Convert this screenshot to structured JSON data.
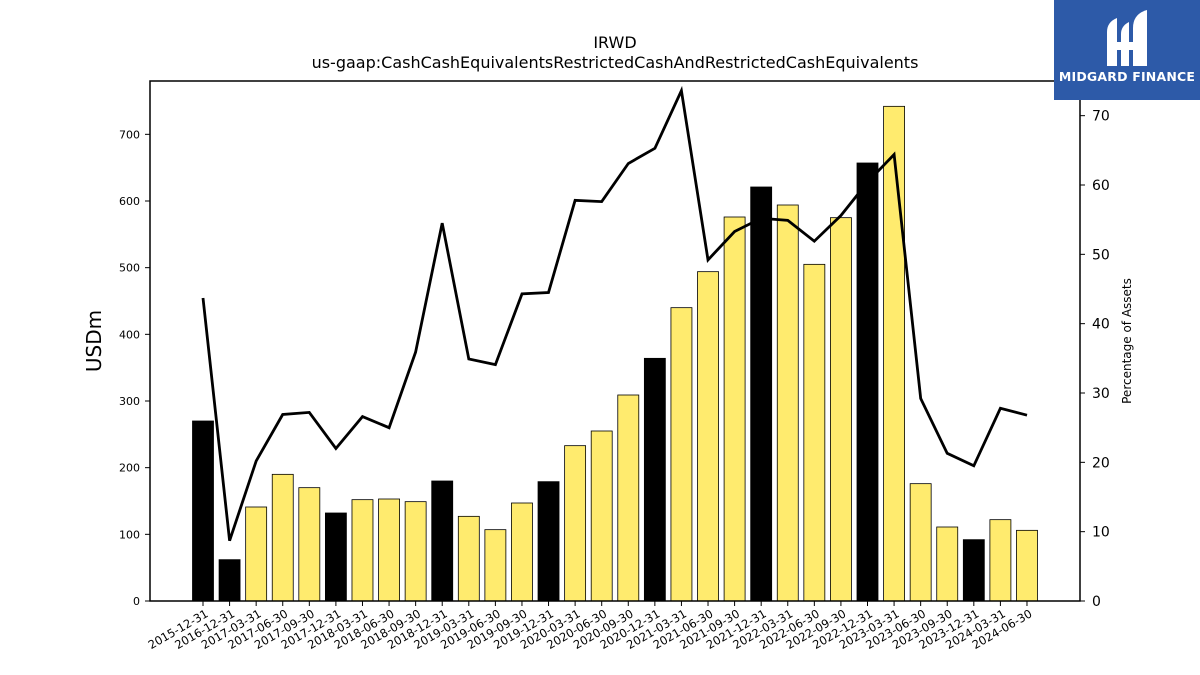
{
  "logo": {
    "text": "MIDGARD FINANCE"
  },
  "colors": {
    "annual_bar": "#000000",
    "quarter_bar": "#ffeb6e",
    "line": "#000000",
    "logo_bg": "#2d5aa8"
  },
  "chart_data": {
    "type": "bar",
    "title": "IRWD",
    "subtitle": "us-gaap:CashCashEquivalentsRestrictedCashAndRestrictedCashEquivalents",
    "ylabel": "USDm",
    "y2label": "Percentage of Assets",
    "ylim": [
      0,
      780
    ],
    "y2lim": [
      0,
      75
    ],
    "yticks": [
      0,
      100,
      200,
      300,
      400,
      500,
      600,
      700
    ],
    "y2ticks": [
      0,
      10,
      20,
      30,
      40,
      50,
      60,
      70
    ],
    "grid": false,
    "categories": [
      "2015-12-31",
      "2016-12-31",
      "2017-03-31",
      "2017-06-30",
      "2017-09-30",
      "2017-12-31",
      "2018-03-31",
      "2018-06-30",
      "2018-09-30",
      "2018-12-31",
      "2019-03-31",
      "2019-06-30",
      "2019-09-30",
      "2019-12-31",
      "2020-03-31",
      "2020-06-30",
      "2020-09-30",
      "2020-12-31",
      "2021-03-31",
      "2021-06-30",
      "2021-09-30",
      "2021-12-31",
      "2022-03-31",
      "2022-06-30",
      "2022-09-30",
      "2022-12-31",
      "2023-03-31",
      "2023-06-30",
      "2023-09-30",
      "2023-12-31",
      "2024-03-31",
      "2024-06-30"
    ],
    "series": [
      {
        "kind": "bar",
        "values": [
          270,
          62,
          141,
          190,
          170,
          132,
          152,
          153,
          149,
          180,
          127,
          107,
          147,
          179,
          233,
          255,
          309,
          364,
          440,
          494,
          576,
          621,
          594,
          505,
          575,
          657,
          742,
          176,
          111,
          92,
          122,
          106
        ],
        "annual": [
          true,
          true,
          false,
          false,
          false,
          true,
          false,
          false,
          false,
          true,
          false,
          false,
          false,
          true,
          false,
          false,
          false,
          true,
          false,
          false,
          false,
          true,
          false,
          false,
          false,
          true,
          false,
          false,
          false,
          true,
          false,
          false
        ]
      },
      {
        "kind": "line",
        "axis": "right",
        "values": [
          43.7,
          8.7,
          20.2,
          26.9,
          27.2,
          22.0,
          26.6,
          25.0,
          35.9,
          54.5,
          34.9,
          34.1,
          44.3,
          44.5,
          57.8,
          57.6,
          63.1,
          65.3,
          73.6,
          49.2,
          53.3,
          55.2,
          54.9,
          51.9,
          55.6,
          60.4,
          64.4,
          29.2,
          21.3,
          19.5,
          27.8,
          26.8
        ]
      }
    ]
  }
}
